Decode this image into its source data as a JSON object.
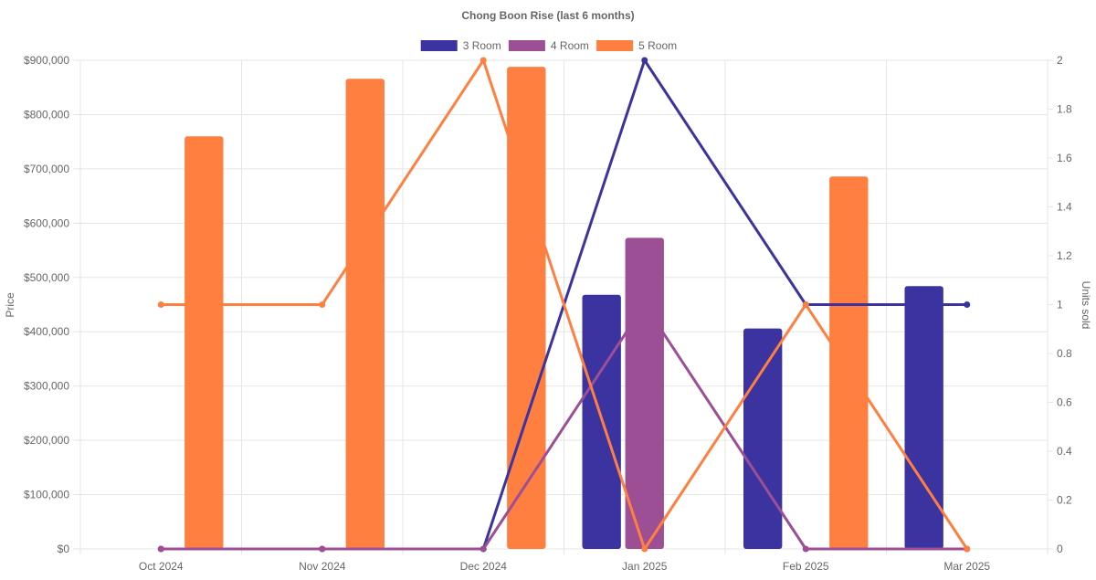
{
  "chart_data": {
    "type": "bar",
    "title": "Chong Boon Rise (last 6 months)",
    "categories": [
      "Oct 2024",
      "Nov 2024",
      "Dec 2024",
      "Jan 2025",
      "Feb 2025",
      "Mar 2025"
    ],
    "ylabel": "Price",
    "y2label": "Units sold",
    "ylim": [
      0,
      900000
    ],
    "y2lim": [
      0,
      2
    ],
    "yticks": [
      "$0",
      "$100,000",
      "$200,000",
      "$300,000",
      "$400,000",
      "$500,000",
      "$600,000",
      "$700,000",
      "$800,000",
      "$900,000"
    ],
    "y2ticks": [
      "0",
      "0.2",
      "0.4",
      "0.6",
      "0.8",
      "1",
      "1.2",
      "1.4",
      "1.6",
      "1.8",
      "2"
    ],
    "legend_position": "top",
    "grid": true,
    "series": [
      {
        "name": "3 Room",
        "color": "#3b33a0",
        "price": [
          null,
          null,
          null,
          468000,
          406000,
          484000
        ],
        "units": [
          0,
          0,
          0,
          2,
          1,
          1
        ]
      },
      {
        "name": "4 Room",
        "color": "#9c4f94",
        "price": [
          null,
          null,
          null,
          573000,
          null,
          null
        ],
        "units": [
          0,
          0,
          0,
          1,
          0,
          0
        ]
      },
      {
        "name": "5 Room",
        "color": "#ff7f41",
        "price": [
          760000,
          866000,
          888000,
          null,
          686000,
          null
        ],
        "units": [
          1,
          1,
          2,
          0,
          1,
          0
        ]
      }
    ]
  }
}
